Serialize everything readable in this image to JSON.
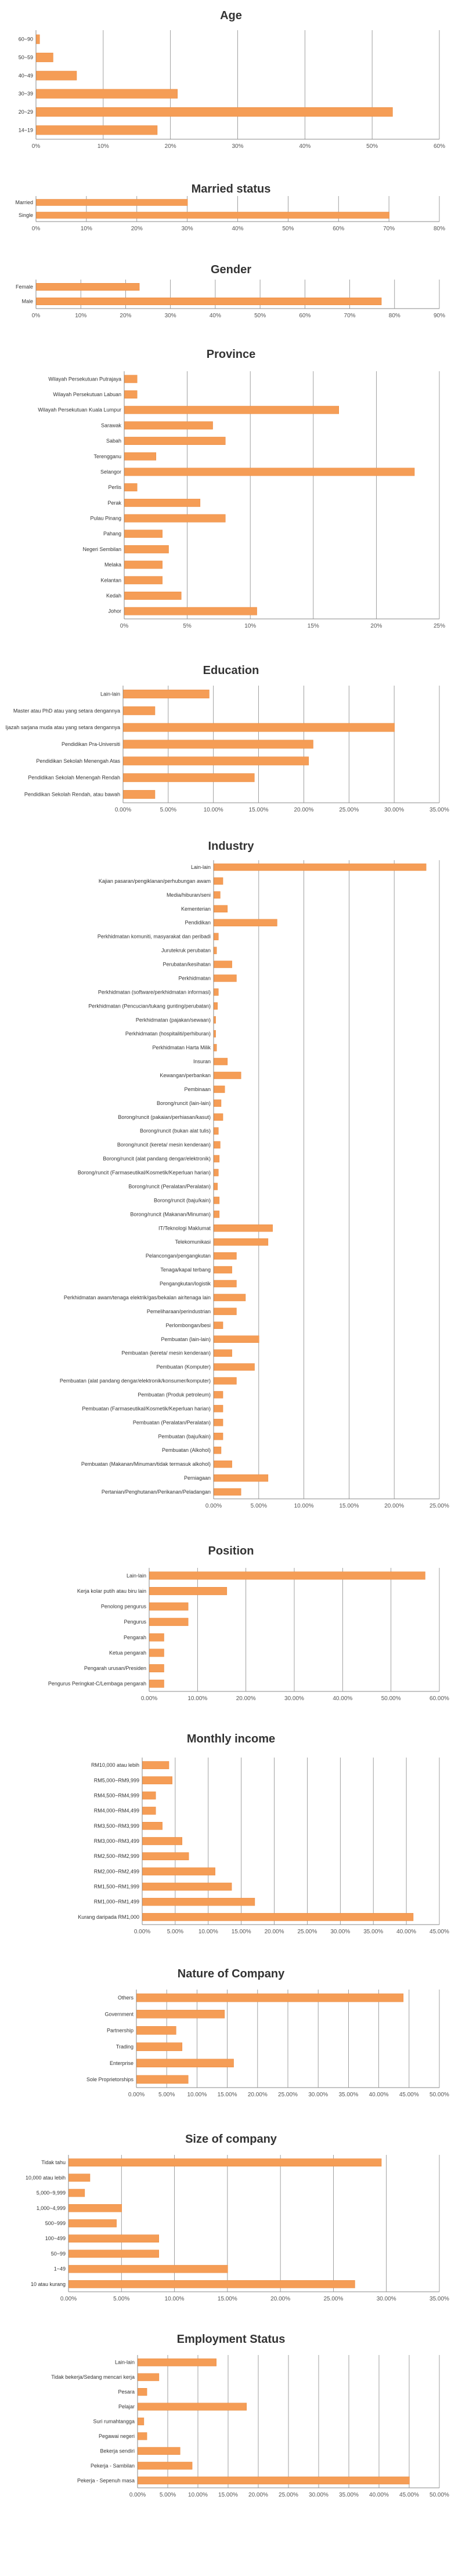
{
  "colors": {
    "bar": "#F59D56",
    "bar_edge": "#E8873A",
    "grid": "#888888",
    "axis": "#888888"
  },
  "chart_data": [
    {
      "type": "bar",
      "orientation": "horizontal",
      "title": "Age",
      "categories": [
        "60~90",
        "50~59",
        "40~49",
        "30~39",
        "20~29",
        "14~19"
      ],
      "values": [
        0.5,
        2.5,
        6,
        21,
        53,
        18
      ],
      "xlim": [
        0,
        60
      ],
      "ticks": [
        "0%",
        "10%",
        "20%",
        "30%",
        "40%",
        "50%",
        "60%"
      ],
      "grid": true
    },
    {
      "type": "bar",
      "orientation": "horizontal",
      "title": "Married status",
      "categories": [
        "Married",
        "Single"
      ],
      "values": [
        30,
        70
      ],
      "xlim": [
        0,
        80
      ],
      "ticks": [
        "0%",
        "10%",
        "20%",
        "30%",
        "40%",
        "50%",
        "60%",
        "70%",
        "80%"
      ],
      "grid": true
    },
    {
      "type": "bar",
      "orientation": "horizontal",
      "title": "Gender",
      "categories": [
        "Female",
        "Male"
      ],
      "values": [
        23,
        77
      ],
      "xlim": [
        0,
        90
      ],
      "ticks": [
        "0%",
        "10%",
        "20%",
        "30%",
        "40%",
        "50%",
        "60%",
        "70%",
        "80%",
        "90%"
      ],
      "grid": true
    },
    {
      "type": "bar",
      "orientation": "horizontal",
      "title": "Province",
      "categories": [
        "Wilayah Persekutuan Putrajaya",
        "Wilayah Persekutuan Labuan",
        "Wilayah Persekutuan Kuala Lumpur",
        "Sarawak",
        "Sabah",
        "Terengganu",
        "Selangor",
        "Perlis",
        "Perak",
        "Pulau Pinang",
        "Pahang",
        "Negeri Sembilan",
        "Melaka",
        "Kelantan",
        "Kedah",
        "Johor"
      ],
      "values": [
        1,
        1,
        17,
        7,
        8,
        2.5,
        23,
        1,
        6,
        8,
        3,
        3.5,
        3,
        3,
        4.5,
        10.5
      ],
      "xlim": [
        0,
        25
      ],
      "ticks": [
        "0%",
        "5%",
        "10%",
        "15%",
        "20%",
        "25%"
      ],
      "grid": true
    },
    {
      "type": "bar",
      "orientation": "horizontal",
      "title": "Education",
      "categories": [
        "Lain-lain",
        "Master atau PhD atau yang setara dengannya",
        "Ijazah sarjana muda atau yang setara dengannya",
        "Pendidikan Pra-Universiti",
        "Pendidikan Sekolah Menengah Atas",
        "Pendidikan Sekolah Menengah Rendah",
        "Pendidikan Sekolah Rendah, atau bawah"
      ],
      "values": [
        9.5,
        3.5,
        30,
        21,
        20.5,
        14.5,
        3.5
      ],
      "xlim": [
        0,
        35
      ],
      "ticks": [
        "0.00%",
        "5.00%",
        "10.00%",
        "15.00%",
        "20.00%",
        "25.00%",
        "30.00%",
        "35.00%"
      ],
      "grid": true
    },
    {
      "type": "bar",
      "orientation": "horizontal",
      "title": "Industry",
      "categories": [
        "Lain-lain",
        "Kajian pasaran/pengiklanan/perhubungan awam",
        "Media/hiburan/seni",
        "Kementerian",
        "Pendidikan",
        "Perkhidmatan komuniti, masyarakat dan peribadi",
        "Jurutekruk perubatan",
        "Perubatan/kesihatan",
        "Perkhidmatan",
        "Perkhidmatan (software/perkhidmatan informasi)",
        "Perkhidmatan (Pencucian/tukang gunting/perubatan)",
        "Perkhidmatan (pajakan/sewaan)",
        "Perkhidmatan (hospitaliti/perhiburan)",
        "Perkhidmatan Harta Milik",
        "Insuran",
        "Kewangan/perbankan",
        "Pembinaan",
        "Borong/runcit (lain-lain)",
        "Borong/runcit (pakaian/perhiasan/kasut)",
        "Borong/runcit (bukan alat tulis)",
        "Borong/runcit (kereta/ mesin kenderaan)",
        "Borong/runcit (alat pandang dengar/elektronik)",
        "Borong/runcit (Farmaseutikal/Kosmetik/Keperluan harian)",
        "Borong/runcit (Peralatan/Peralatan)",
        "Borong/runcit (baju/kain)",
        "Borong/runcit (Makanan/Minuman)",
        "IT/Teknologi Maklumat",
        "Telekomunikasi",
        "Pelancongan/pengangkutan",
        "Tenaga/kapal terbang",
        "Pengangkutan/logistik",
        "Perkhidmatan awam/tenaga elektrik/gas/bekalan air/tenaga lain",
        "Pemeliharaan/perindustrian",
        "Perlombongan/besi",
        "Pembuatan (lain-lain)",
        "Pembuatan (kereta/ mesin kenderaan)",
        "Pembuatan (Komputer)",
        "Pembuatan (alat pandang dengar/elektronik/konsumer/komputer)",
        "Pembuatan (Produk petroleum)",
        "Pembuatan (Farmaseutikal/Kosmetik/Keperluan harian)",
        "Pembuatan (Peralatan/Peralatan)",
        "Pembuatan (baju/kain)",
        "Pembuatan (Alkohol)",
        "Pembuatan (Makanan/Minuman/tidak termasuk alkohol)",
        "Perniagaan",
        "Pertanian/Penghutanan/Perikanan/Peladangan"
      ],
      "values": [
        23.5,
        1,
        0.7,
        1.5,
        7,
        0.5,
        0.3,
        2,
        2.5,
        0.5,
        0.4,
        0.2,
        0.2,
        0.3,
        1.5,
        3,
        1.2,
        0.8,
        1,
        0.5,
        0.7,
        0.6,
        0.5,
        0.4,
        0.6,
        0.6,
        6.5,
        6,
        2.5,
        2,
        2.5,
        3.5,
        2.5,
        1,
        5,
        2,
        4.5,
        2.5,
        1,
        1,
        1,
        1,
        0.8,
        2,
        6,
        3
      ],
      "xlim": [
        0,
        25
      ],
      "ticks": [
        "0.00%",
        "5.00%",
        "10.00%",
        "15.00%",
        "20.00%",
        "25.00%"
      ],
      "grid": true
    },
    {
      "type": "bar",
      "orientation": "horizontal",
      "title": "Position",
      "categories": [
        "Lain-lain",
        "Kerja kolar putih atau biru lain",
        "Penolong pengurus",
        "Pengurus",
        "Pengarah",
        "Ketua pengarah",
        "Pengarah urusan/Presiden",
        "Pengurus Peringkat-C/Lembaga pengarah"
      ],
      "values": [
        57,
        16,
        8,
        8,
        3,
        3,
        3,
        3
      ],
      "xlim": [
        0,
        60
      ],
      "ticks": [
        "0.00%",
        "10.00%",
        "20.00%",
        "30.00%",
        "40.00%",
        "50.00%",
        "60.00%"
      ],
      "grid": true
    },
    {
      "type": "bar",
      "orientation": "horizontal",
      "title": "Monthly income",
      "categories": [
        "RM10,000 atau lebih",
        "RM5,000~RM9,999",
        "RM4,500~RM4,999",
        "RM4,000~RM4,499",
        "RM3,500~RM3,999",
        "RM3,000~RM3,499",
        "RM2,500~RM2,999",
        "RM2,000~RM2,499",
        "RM1,500~RM1,999",
        "RM1,000~RM1,499",
        "Kurang daripada RM1,000"
      ],
      "values": [
        4,
        4.5,
        2,
        2,
        3,
        6,
        7,
        11,
        13.5,
        17,
        41
      ],
      "xlim": [
        0,
        45
      ],
      "ticks": [
        "0.00%",
        "5.00%",
        "10.00%",
        "15.00%",
        "20.00%",
        "25.00%",
        "30.00%",
        "35.00%",
        "40.00%",
        "45.00%"
      ],
      "grid": true
    },
    {
      "type": "bar",
      "orientation": "horizontal",
      "title": "Nature of Company",
      "categories": [
        "Others",
        "Government",
        "Partnership",
        "Trading",
        "Enterprise",
        "Sole Proprietorships"
      ],
      "values": [
        44,
        14.5,
        6.5,
        7.5,
        16,
        8.5
      ],
      "xlim": [
        0,
        50
      ],
      "ticks": [
        "0.00%",
        "5.00%",
        "10.00%",
        "15.00%",
        "20.00%",
        "25.00%",
        "30.00%",
        "35.00%",
        "40.00%",
        "45.00%",
        "50.00%"
      ],
      "grid": true
    },
    {
      "type": "bar",
      "orientation": "horizontal",
      "title": "Size of company",
      "categories": [
        "Tidak tahu",
        "10,000 atau lebih",
        "5,000~9,999",
        "1,000~4,999",
        "500~999",
        "100~499",
        "50~99",
        "1~49",
        "10 atau kurang"
      ],
      "values": [
        29.5,
        2,
        1.5,
        5,
        4.5,
        8.5,
        8.5,
        15,
        27
      ],
      "xlim": [
        0,
        35
      ],
      "ticks": [
        "0.00%",
        "5.00%",
        "10.00%",
        "15.00%",
        "20.00%",
        "25.00%",
        "30.00%",
        "35.00%"
      ],
      "grid": true
    },
    {
      "type": "bar",
      "orientation": "horizontal",
      "title": "Employment Status",
      "categories": [
        "Lain-lain",
        "Tidak bekerja/Sedang mencari kerja",
        "Pesara",
        "Pelajar",
        "Suri rumahtangga",
        "Pegawai negeri",
        "Bekerja sendiri",
        "Pekerja - Sambilan",
        "Pekerja - Sepenuh masa"
      ],
      "values": [
        13,
        3.5,
        1.5,
        18,
        1,
        1.5,
        7,
        9,
        45
      ],
      "xlim": [
        0,
        50
      ],
      "ticks": [
        "0.00%",
        "5.00%",
        "10.00%",
        "15.00%",
        "20.00%",
        "25.00%",
        "30.00%",
        "35.00%",
        "40.00%",
        "45.00%",
        "50.00%"
      ],
      "grid": true
    }
  ]
}
